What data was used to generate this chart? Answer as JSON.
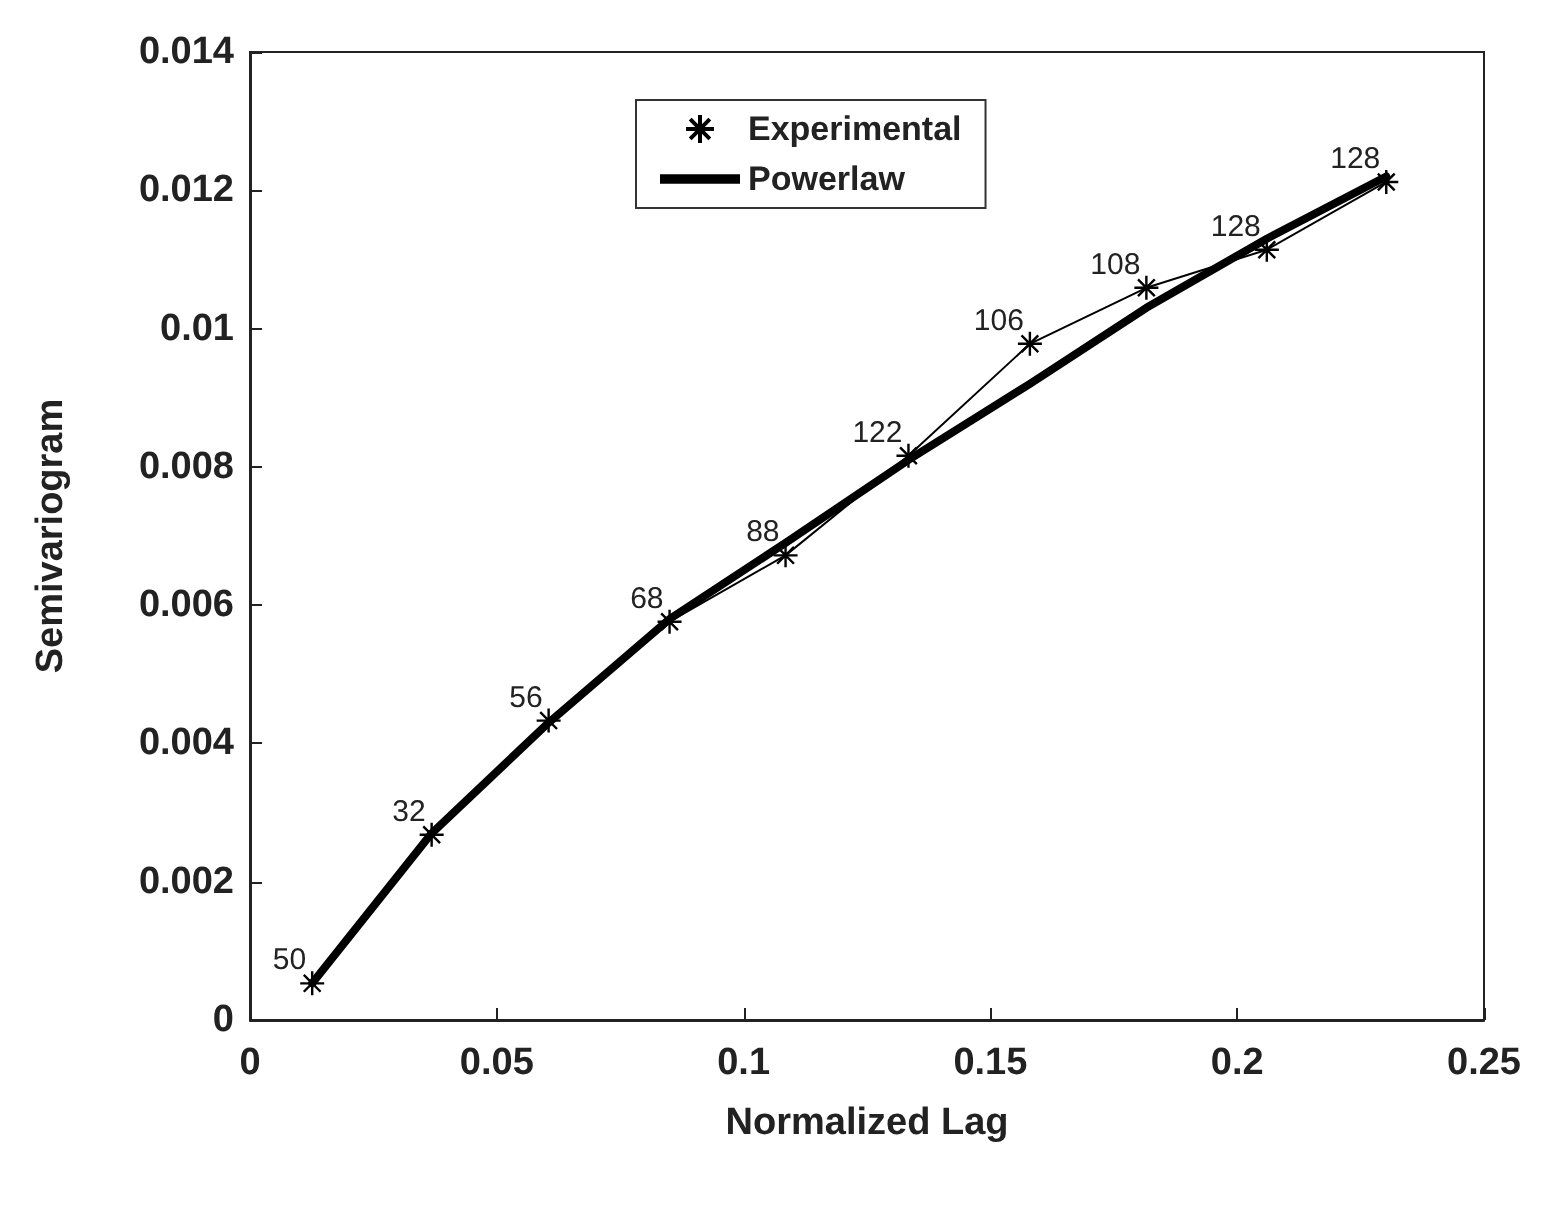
{
  "chart_data": {
    "type": "line",
    "xlabel": "Normalized Lag",
    "ylabel": "Semivariogram",
    "x": [
      0.0126,
      0.0368,
      0.0605,
      0.085,
      0.1085,
      0.1334,
      0.158,
      0.1816,
      0.206,
      0.2302
    ],
    "series": [
      {
        "name": "Experimental",
        "color": "#000000",
        "marker": "cross",
        "values": [
          0.00053,
          0.00268,
          0.00433,
          0.00576,
          0.00672,
          0.00816,
          0.00978,
          0.01059,
          0.01114,
          0.01212
        ]
      },
      {
        "name": "Powerlaw",
        "color": "#000000",
        "marker": "none",
        "values": [
          0.00053,
          0.0027,
          0.0043,
          0.0058,
          0.0069,
          0.0081,
          0.0092,
          0.0103,
          0.0113,
          0.0122
        ]
      }
    ],
    "xlim": [
      0,
      0.25
    ],
    "xticks": [
      0,
      0.05,
      0.1,
      0.15,
      0.2,
      0.25
    ],
    "ylim": [
      0,
      0.014
    ],
    "yticks": [
      0,
      0.002,
      0.004,
      0.006,
      0.008,
      0.01,
      0.012,
      0.014
    ],
    "legend": "top",
    "annotations": [
      {
        "text": "50",
        "x": 0.0126,
        "y": 0.00053
      },
      {
        "text": "32",
        "x": 0.0368,
        "y": 0.00268
      },
      {
        "text": "56",
        "x": 0.0605,
        "y": 0.00433
      },
      {
        "text": "68",
        "x": 0.085,
        "y": 0.00576
      },
      {
        "text": "88",
        "x": 0.1085,
        "y": 0.00672
      },
      {
        "text": "122",
        "x": 0.1334,
        "y": 0.00816
      },
      {
        "text": "106",
        "x": 0.158,
        "y": 0.00978
      },
      {
        "text": "108",
        "x": 0.1816,
        "y": 0.01059
      },
      {
        "text": "128",
        "x": 0.206,
        "y": 0.01114
      },
      {
        "text": "128",
        "x": 0.2302,
        "y": 0.01212
      }
    ]
  }
}
